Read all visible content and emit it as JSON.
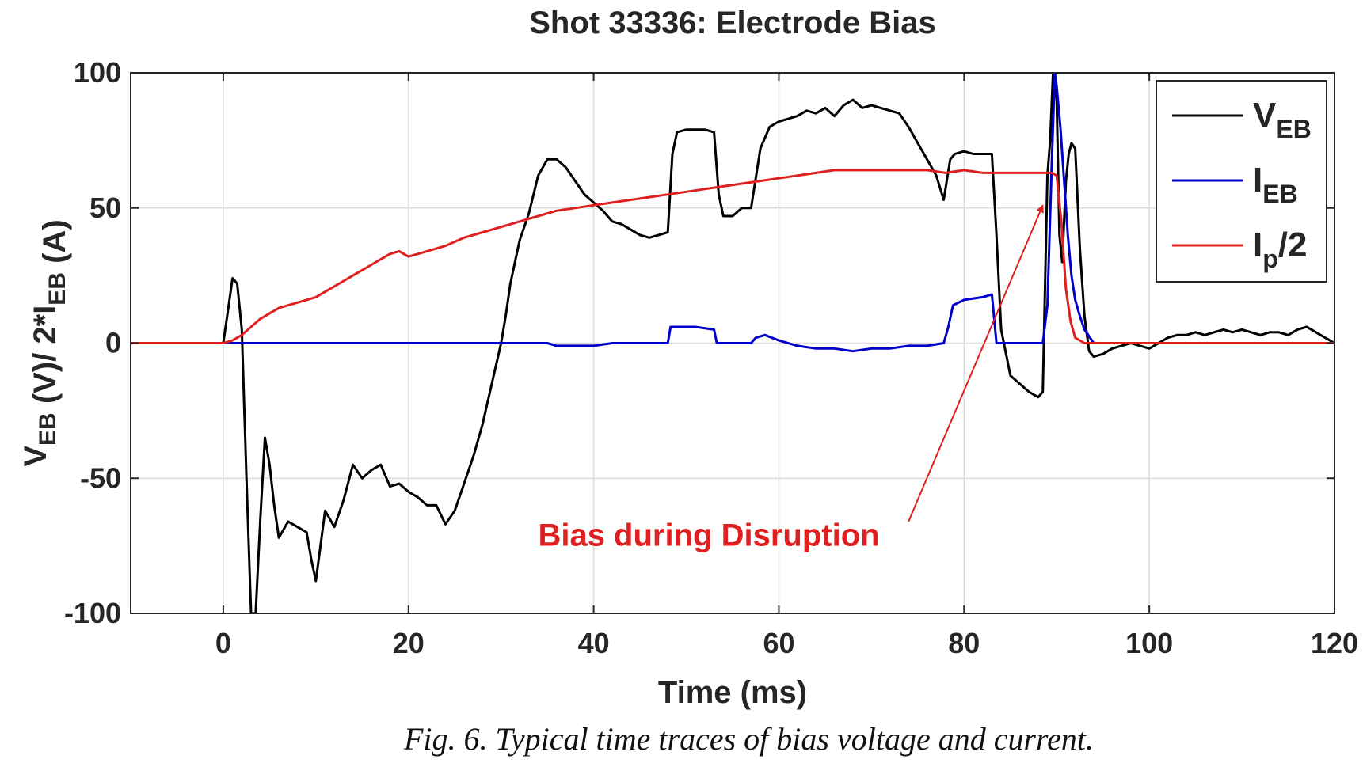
{
  "chart_data": {
    "type": "line",
    "title": "Shot 33336: Electrode Bias",
    "xlabel": "Time (ms)",
    "ylabel": {
      "parts": [
        {
          "text": "V",
          "sub": false
        },
        {
          "text": "EB",
          "sub": true
        },
        {
          "text": " (V)/ 2*I",
          "sub": false
        },
        {
          "text": "EB",
          "sub": true
        },
        {
          "text": " (A)",
          "sub": false
        }
      ]
    },
    "xlim": [
      -10,
      120
    ],
    "ylim": [
      -100,
      100
    ],
    "xticks": [
      0,
      20,
      40,
      60,
      80,
      100,
      120
    ],
    "yticks": [
      -100,
      -50,
      0,
      50,
      100
    ],
    "xtick_labels": [
      "0",
      "20",
      "40",
      "60",
      "80",
      "100",
      "120"
    ],
    "ytick_labels": [
      "-100",
      "-50",
      "0",
      "50",
      "100"
    ],
    "grid": true,
    "legend_position": "top-right",
    "series": [
      {
        "key": "veb",
        "color": "#000000",
        "legend": {
          "main": "V",
          "sub": "EB",
          "rest": ""
        },
        "x": [
          -10,
          0,
          0.5,
          1,
          1.5,
          2,
          2.5,
          3,
          3.5,
          4,
          4.5,
          5,
          5.5,
          6,
          7,
          8,
          9,
          9.5,
          10,
          11,
          12,
          13,
          14,
          15,
          16,
          17,
          18,
          19,
          20,
          21,
          22,
          23,
          24,
          25,
          26,
          27,
          28,
          29,
          30,
          30.5,
          31,
          31.5,
          32,
          33,
          34,
          35,
          36,
          37,
          38,
          39,
          40,
          41,
          42,
          43,
          44,
          45,
          46,
          47,
          48,
          48.5,
          49,
          50,
          51,
          52,
          53,
          53.5,
          54,
          55,
          56,
          57,
          58,
          59,
          60,
          61,
          62,
          63,
          64,
          65,
          66,
          67,
          68,
          69,
          70,
          71,
          72,
          73,
          74,
          75,
          76,
          77,
          77.8,
          78.5,
          79,
          80,
          81,
          82,
          83,
          83.5,
          84,
          85,
          86,
          87,
          88,
          88.5,
          89,
          89.3,
          89.6,
          90,
          90.3,
          90.6,
          91,
          91.3,
          91.6,
          92,
          92.5,
          93,
          93.5,
          94,
          95,
          96,
          97,
          98,
          99,
          100,
          101,
          102,
          103,
          104,
          105,
          106,
          107,
          108,
          109,
          110,
          111,
          112,
          113,
          114,
          115,
          116,
          117,
          118,
          119,
          120
        ],
        "y": [
          0,
          0,
          12,
          24,
          22,
          5,
          -50,
          -100,
          -100,
          -65,
          -35,
          -45,
          -60,
          -72,
          -66,
          -68,
          -70,
          -80,
          -88,
          -62,
          -68,
          -58,
          -45,
          -50,
          -47,
          -45,
          -53,
          -52,
          -55,
          -57,
          -60,
          -60,
          -67,
          -62,
          -52,
          -42,
          -30,
          -15,
          0,
          10,
          22,
          30,
          38,
          48,
          62,
          68,
          68,
          65,
          60,
          55,
          52,
          49,
          45,
          44,
          42,
          40,
          39,
          40,
          41,
          70,
          78,
          79,
          79,
          79,
          78,
          55,
          47,
          47,
          50,
          50,
          72,
          80,
          82,
          83,
          84,
          86,
          85,
          87,
          84,
          88,
          90,
          87,
          88,
          87,
          86,
          85,
          80,
          74,
          68,
          62,
          53,
          68,
          70,
          71,
          70,
          70,
          70,
          40,
          5,
          -12,
          -15,
          -18,
          -20,
          -18,
          62,
          75,
          100,
          90,
          40,
          30,
          60,
          70,
          74,
          72,
          35,
          10,
          -3,
          -5,
          -4,
          -2,
          -1,
          0,
          -1,
          -2,
          0,
          2,
          3,
          3,
          4,
          3,
          4,
          5,
          4,
          5,
          4,
          3,
          4,
          4,
          3,
          5,
          6,
          4,
          2,
          0
        ]
      },
      {
        "key": "ieb",
        "color": "#0000CC",
        "legend": {
          "main": "I",
          "sub": "EB",
          "rest": ""
        },
        "x": [
          -10,
          35,
          36,
          38,
          40,
          42,
          44,
          46,
          48,
          48.3,
          49,
          51,
          53,
          53.3,
          55,
          57,
          57.5,
          58.5,
          60,
          62,
          64,
          66,
          68,
          70,
          72,
          74,
          76,
          77.8,
          78.3,
          78.8,
          80,
          82,
          83,
          83.5,
          84,
          88.5,
          89,
          89.5,
          89.8,
          90,
          90.4,
          90.8,
          91.2,
          91.6,
          92,
          92.5,
          93,
          94,
          95,
          120
        ],
        "y": [
          0,
          0,
          -1,
          -1,
          -1,
          0,
          0,
          0,
          0,
          6,
          6,
          6,
          5,
          0,
          0,
          0,
          2,
          3,
          1,
          -1,
          -2,
          -2,
          -3,
          -2,
          -2,
          -1,
          -1,
          0,
          6,
          14,
          16,
          17,
          18,
          0,
          0,
          0,
          14,
          70,
          100,
          95,
          80,
          60,
          40,
          25,
          16,
          10,
          5,
          0,
          0,
          0
        ]
      },
      {
        "key": "ip2",
        "color": "#E02020",
        "legend": {
          "main": "I",
          "sub": "p",
          "rest": "/2"
        },
        "x": [
          -10,
          0,
          1,
          2,
          3,
          4,
          5,
          6,
          7,
          8,
          9,
          10,
          11,
          12,
          13,
          14,
          15,
          16,
          17,
          18,
          19,
          20,
          22,
          24,
          26,
          28,
          30,
          32,
          34,
          36,
          38,
          40,
          42,
          44,
          46,
          48,
          50,
          52,
          54,
          56,
          58,
          60,
          62,
          64,
          66,
          68,
          70,
          72,
          74,
          76,
          78,
          80,
          82,
          84,
          86,
          88,
          89,
          89.5,
          90,
          90.5,
          91,
          91.5,
          92,
          93,
          94,
          95,
          120
        ],
        "y": [
          0,
          0,
          1,
          3,
          6,
          9,
          11,
          13,
          14,
          15,
          16,
          17,
          19,
          21,
          23,
          25,
          27,
          29,
          31,
          33,
          34,
          32,
          34,
          36,
          39,
          41,
          43,
          45,
          47,
          49,
          50,
          51,
          52,
          53,
          54,
          55,
          56,
          57,
          58,
          59,
          60,
          61,
          62,
          63,
          64,
          64,
          64,
          64,
          64,
          64,
          63,
          64,
          63,
          63,
          63,
          63,
          63,
          63,
          62,
          45,
          20,
          8,
          2,
          0,
          0,
          0,
          0
        ]
      }
    ],
    "annotation": {
      "text": "Bias during Disruption",
      "color": "#E02020",
      "text_at": [
        34,
        -75
      ],
      "arrow_from": [
        74,
        -66
      ],
      "arrow_to": [
        88.5,
        51
      ]
    }
  },
  "caption": "Fig. 6. Typical time traces of bias voltage and current."
}
